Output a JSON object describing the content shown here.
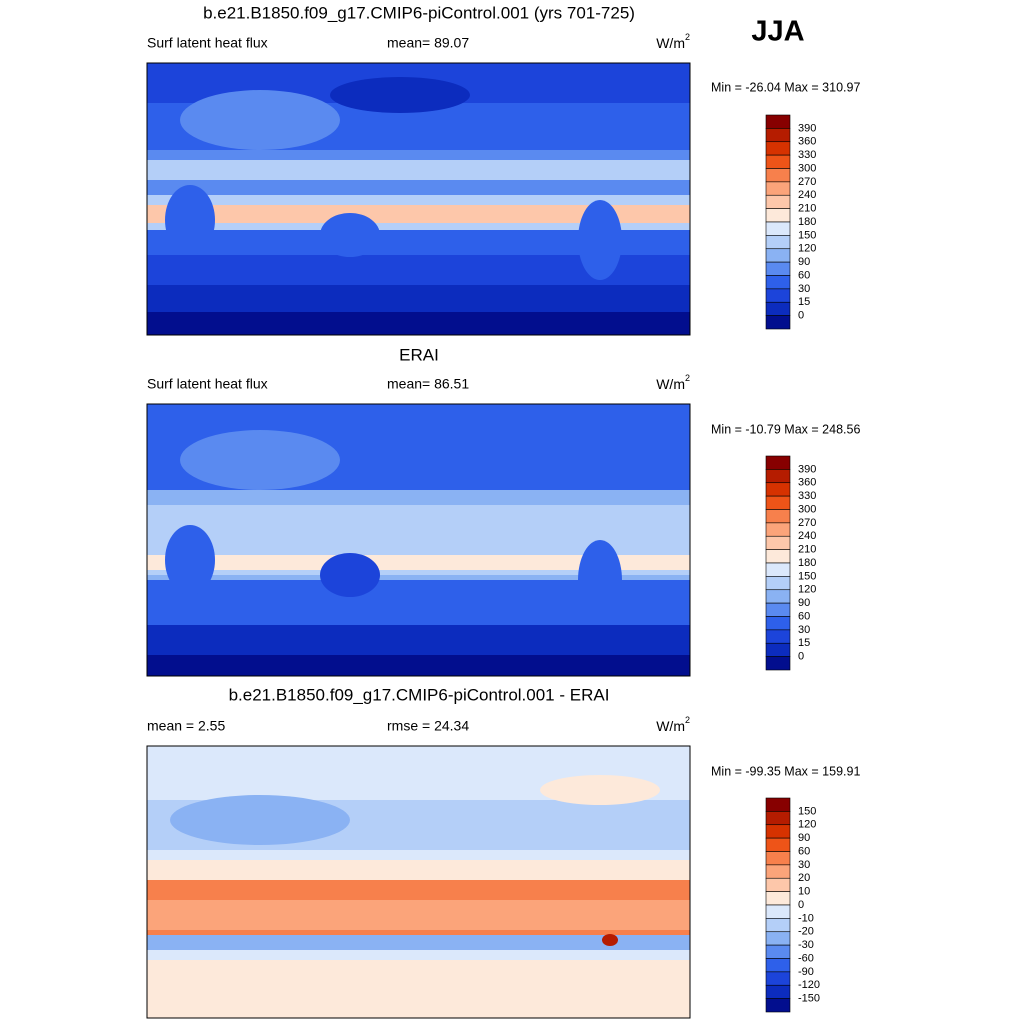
{
  "corner_label": "JJA",
  "panels": [
    {
      "title": "b.e21.B1850.f09_g17.CMIP6-piControl.001 (yrs 701-725)",
      "left": "Surf latent heat flux",
      "center": "mean=  89.07",
      "units": "W/m",
      "units_sup": "2",
      "minmax": "Min = -26.04 Max = 310.97",
      "colorbar": {
        "labels": [
          "390",
          "360",
          "330",
          "300",
          "270",
          "240",
          "210",
          "180",
          "150",
          "120",
          "90",
          "60",
          "30",
          "15",
          "0"
        ],
        "colors": [
          "#870000",
          "#b51c00",
          "#d63200",
          "#ee5418",
          "#f7804c",
          "#fba47a",
          "#fdc7aa",
          "#fde9da",
          "#dbe8fb",
          "#b4cff8",
          "#8ab2f3",
          "#5a8af0",
          "#2e60ea",
          "#1c44da",
          "#0c2cbe",
          "#020e8e"
        ]
      }
    },
    {
      "title": "ERAI",
      "left": "Surf latent heat flux",
      "center": "mean=  86.51",
      "units": "W/m",
      "units_sup": "2",
      "minmax": "Min = -10.79 Max = 248.56",
      "colorbar": {
        "labels": [
          "390",
          "360",
          "330",
          "300",
          "270",
          "240",
          "210",
          "180",
          "150",
          "120",
          "90",
          "60",
          "30",
          "15",
          "0"
        ],
        "colors": [
          "#870000",
          "#b51c00",
          "#d63200",
          "#ee5418",
          "#f7804c",
          "#fba47a",
          "#fdc7aa",
          "#fde9da",
          "#dbe8fb",
          "#b4cff8",
          "#8ab2f3",
          "#5a8af0",
          "#2e60ea",
          "#1c44da",
          "#0c2cbe",
          "#020e8e"
        ]
      }
    },
    {
      "title": "b.e21.B1850.f09_g17.CMIP6-piControl.001 - ERAI",
      "left": "mean =   2.55",
      "center": "rmse =  24.34",
      "units": "W/m",
      "units_sup": "2",
      "minmax": "Min = -99.35 Max = 159.91",
      "colorbar": {
        "labels": [
          "150",
          "120",
          "90",
          "60",
          "30",
          "20",
          "10",
          "0",
          "-10",
          "-20",
          "-30",
          "-60",
          "-90",
          "-120",
          "-150"
        ],
        "colors": [
          "#870000",
          "#b51c00",
          "#d63200",
          "#ee5418",
          "#f7804c",
          "#fba47a",
          "#fdc7aa",
          "#fde9da",
          "#dbe8fb",
          "#b4cff8",
          "#8ab2f3",
          "#5a8af0",
          "#2e60ea",
          "#1c44da",
          "#0c2cbe",
          "#020e8e"
        ]
      }
    }
  ]
}
